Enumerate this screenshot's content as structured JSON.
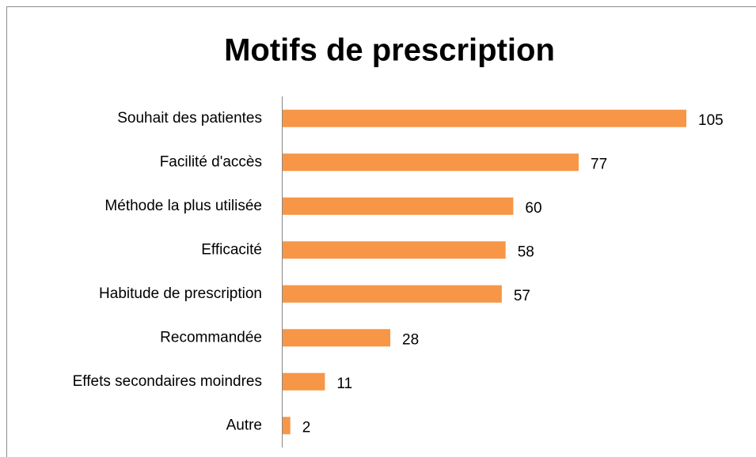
{
  "chart_data": {
    "type": "bar",
    "orientation": "horizontal",
    "title": "Motifs de prescription",
    "categories": [
      "Souhait des patientes",
      "Facilité d'accès",
      "Méthode la plus utilisée",
      "Efficacité",
      "Habitude de prescription",
      "Recommandée",
      "Effets secondaires moindres",
      "Autre"
    ],
    "values": [
      105,
      77,
      60,
      58,
      57,
      28,
      11,
      2
    ],
    "color": "#f79646"
  }
}
